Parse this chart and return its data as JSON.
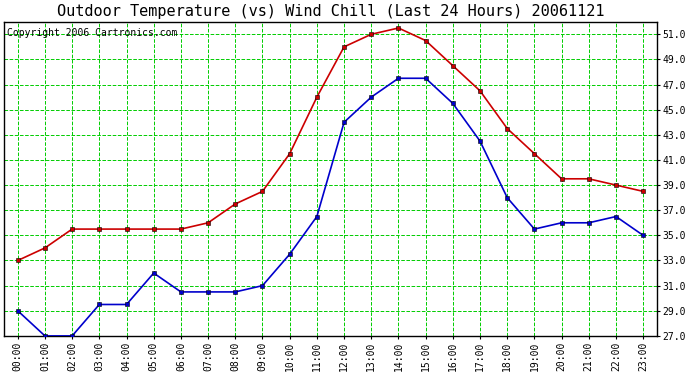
{
  "title": "Outdoor Temperature (vs) Wind Chill (Last 24 Hours) 20061121",
  "copyright": "Copyright 2006 Cartronics.com",
  "hours": [
    "00:00",
    "01:00",
    "02:00",
    "03:00",
    "04:00",
    "05:00",
    "06:00",
    "07:00",
    "08:00",
    "09:00",
    "10:00",
    "11:00",
    "12:00",
    "13:00",
    "14:00",
    "15:00",
    "16:00",
    "17:00",
    "18:00",
    "19:00",
    "20:00",
    "21:00",
    "22:00",
    "23:00"
  ],
  "temp": [
    33.0,
    34.0,
    35.5,
    35.5,
    35.5,
    35.5,
    35.5,
    36.0,
    37.5,
    38.5,
    41.5,
    46.0,
    50.0,
    51.0,
    51.5,
    50.5,
    48.5,
    46.5,
    43.5,
    41.5,
    39.5,
    39.5,
    39.0,
    38.5
  ],
  "wind_chill": [
    29.0,
    27.0,
    27.0,
    29.5,
    29.5,
    32.0,
    30.5,
    30.5,
    30.5,
    31.0,
    33.5,
    36.5,
    44.0,
    46.0,
    47.5,
    47.5,
    45.5,
    42.5,
    38.0,
    35.5,
    36.0,
    36.0,
    36.5,
    35.0
  ],
  "temp_color": "#cc0000",
  "wind_chill_color": "#0000cc",
  "bg_color": "#ffffff",
  "plot_bg_color": "#ffffff",
  "grid_color": "#00cc00",
  "ylim": [
    27.0,
    52.0
  ],
  "yticks": [
    27.0,
    29.0,
    31.0,
    33.0,
    35.0,
    37.0,
    39.0,
    41.0,
    43.0,
    45.0,
    47.0,
    49.0,
    51.0
  ],
  "title_fontsize": 11,
  "copyright_fontsize": 7,
  "tick_fontsize": 7,
  "marker": "s",
  "marker_size": 3,
  "line_width": 1.2,
  "fig_width": 6.9,
  "fig_height": 3.75,
  "dpi": 100
}
